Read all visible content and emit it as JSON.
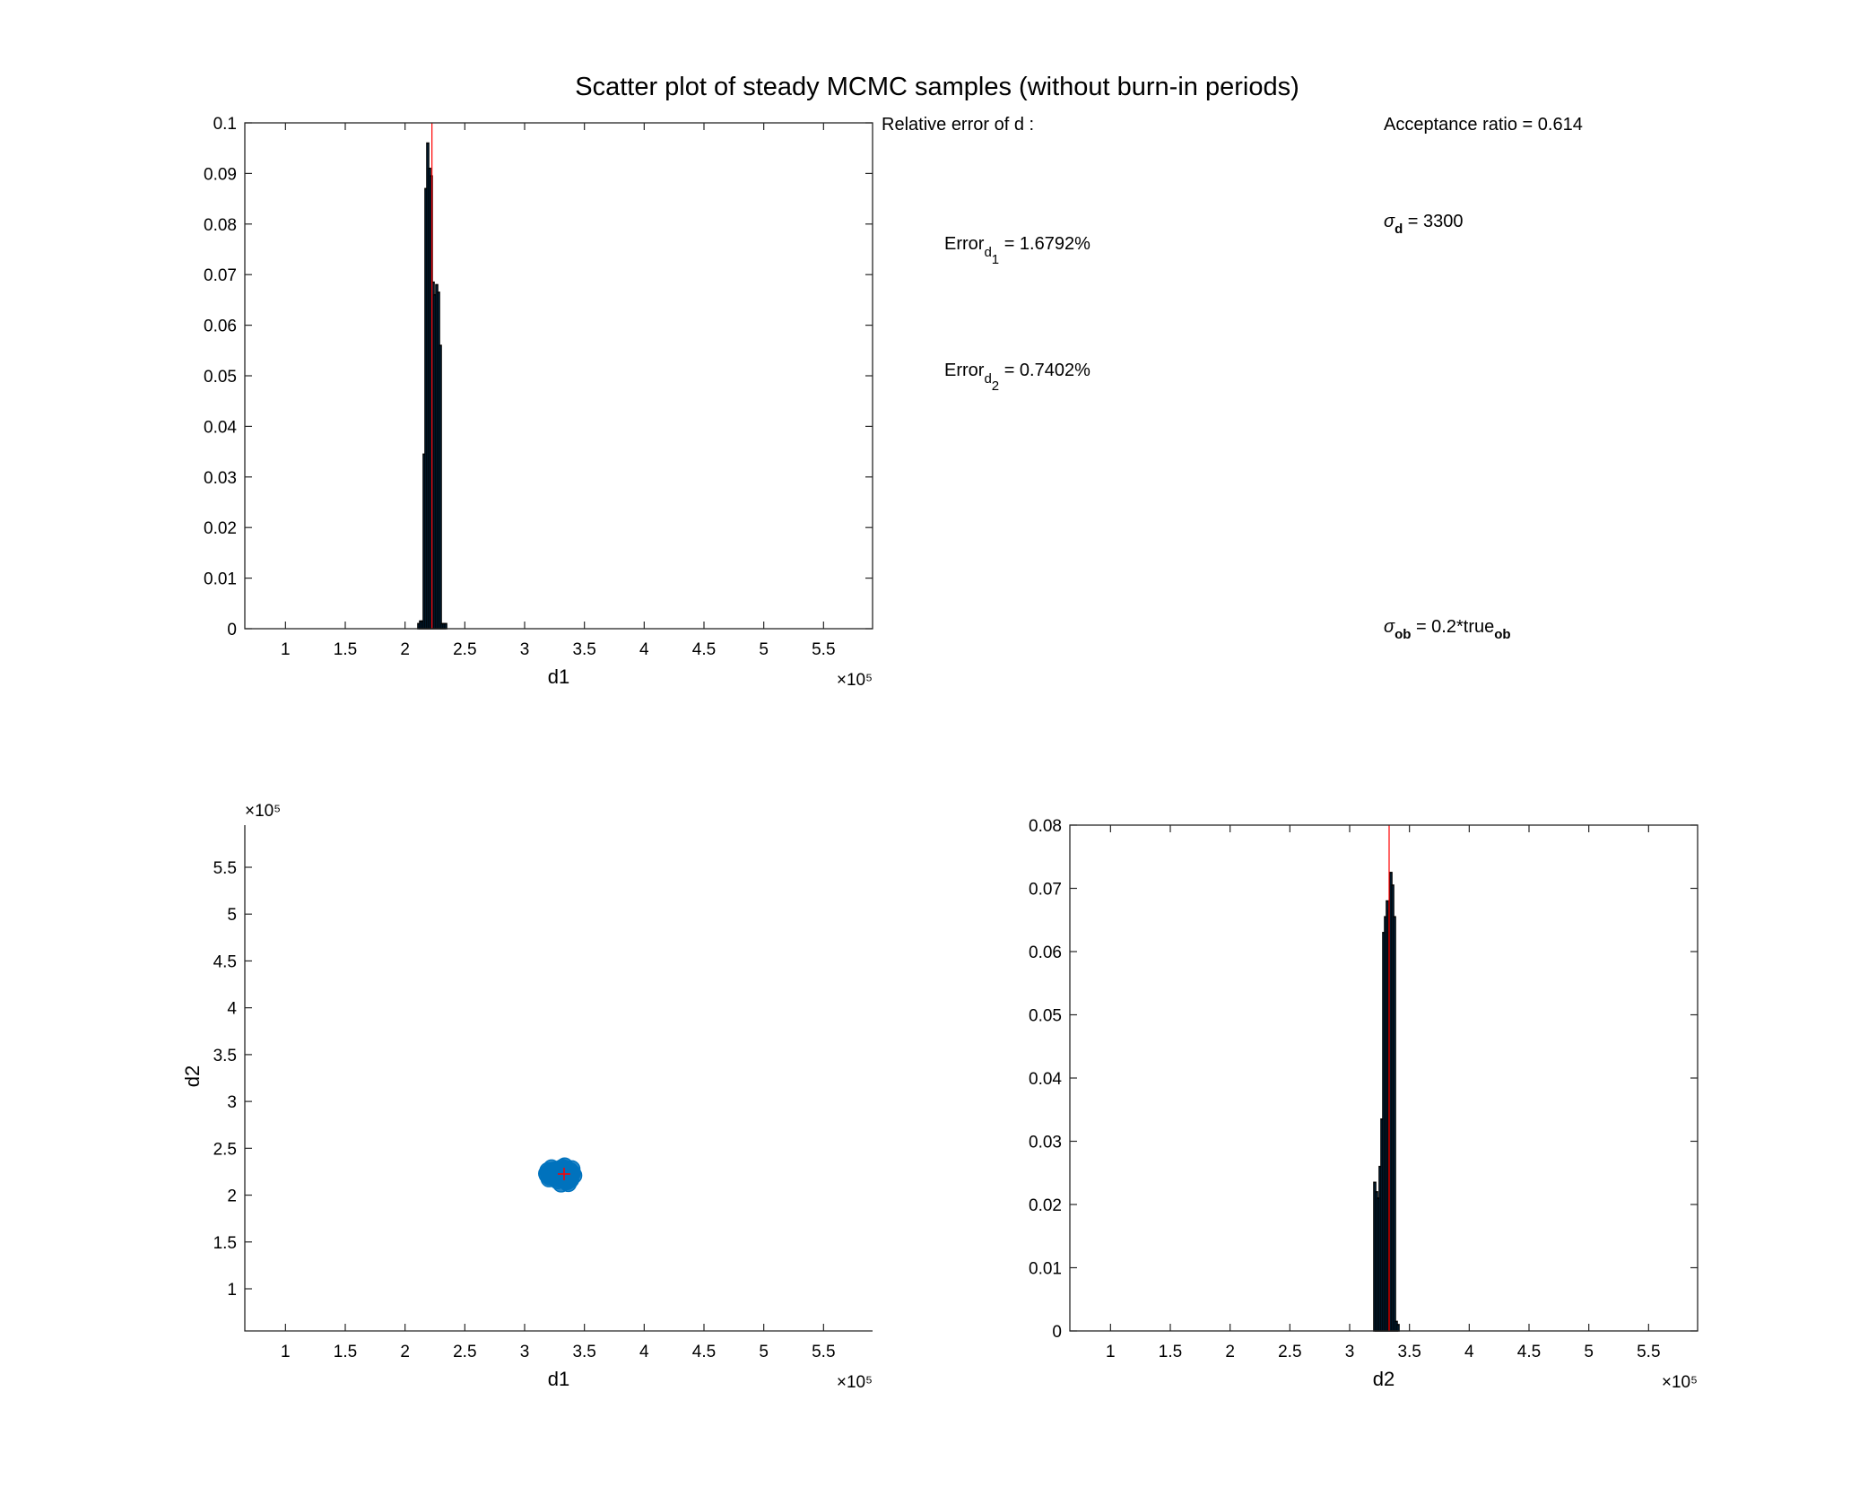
{
  "figure": {
    "title": "Scatter plot of steady MCMC samples (without burn-in periods)"
  },
  "colors": {
    "axis": "#262626",
    "bar_face": "#0072BD",
    "bar_edge": "#000000",
    "scatter": "#0072BD",
    "true_marker": "#FF0000"
  },
  "annotations": {
    "rel_error_heading": "Relative error of d :",
    "error_d1": {
      "base": "Error",
      "sub": "d",
      "subsub": "1",
      "text": " = 1.6792%"
    },
    "error_d2": {
      "base": "Error",
      "sub": "d",
      "subsub": "2",
      "text": " = 0.7402%"
    },
    "acceptance": "Acceptance ratio = 0.614",
    "sigma_d": {
      "base": "σ",
      "sub": "d",
      "text": " = 3300"
    },
    "sigma_ob": {
      "base": "σ",
      "sub": "ob",
      "text": " = 0.2*true",
      "sub2": "ob"
    }
  },
  "chart_data": [
    {
      "id": "hist_d1",
      "type": "bar",
      "xlabel": "d1",
      "ylabel": "",
      "xlim": [
        66000,
        591000
      ],
      "ylim": [
        0,
        0.1
      ],
      "x_exponent": "×10⁵",
      "xticks": [
        100000,
        150000,
        200000,
        250000,
        300000,
        350000,
        400000,
        450000,
        500000,
        550000
      ],
      "xticklabels": [
        "1",
        "1.5",
        "2",
        "2.5",
        "3",
        "3.5",
        "4",
        "4.5",
        "5",
        "5.5"
      ],
      "yticks": [
        0,
        0.01,
        0.02,
        0.03,
        0.04,
        0.05,
        0.06,
        0.07,
        0.08,
        0.09,
        0.1
      ],
      "yticklabels": [
        "0",
        "0.01",
        "0.02",
        "0.03",
        "0.04",
        "0.05",
        "0.06",
        "0.07",
        "0.08",
        "0.09",
        "0.1"
      ],
      "bin_width": 1500,
      "bin_centers": [
        211500,
        213000,
        214500,
        216000,
        217500,
        219000,
        220500,
        222000,
        223500,
        225000,
        226500,
        228000,
        229500,
        231000,
        232500,
        234000
      ],
      "values": [
        0.001,
        0.0015,
        0.0015,
        0.0345,
        0.087,
        0.096,
        0.091,
        0.0895,
        0.0685,
        0.066,
        0.068,
        0.0665,
        0.056,
        0.001,
        0.001,
        0.001
      ],
      "true_value": 222500
    },
    {
      "id": "scatter_d1_d2",
      "type": "scatter",
      "xlabel": "d1",
      "ylabel": "d2",
      "xlim": [
        66000,
        591000
      ],
      "ylim": [
        55000,
        595000
      ],
      "x_exponent": "×10⁵",
      "y_exponent": "×10⁵",
      "xticks": [
        100000,
        150000,
        200000,
        250000,
        300000,
        350000,
        400000,
        450000,
        500000,
        550000
      ],
      "xticklabels": [
        "1",
        "1.5",
        "2",
        "2.5",
        "3",
        "3.5",
        "4",
        "4.5",
        "5",
        "5.5"
      ],
      "yticks": [
        100000,
        150000,
        200000,
        250000,
        300000,
        350000,
        400000,
        450000,
        500000,
        550000
      ],
      "yticklabels": [
        "1",
        "1.5",
        "2",
        "2.5",
        "3",
        "3.5",
        "4",
        "4.5",
        "5",
        "5.5"
      ],
      "points": [
        [
          319000,
          221500
        ],
        [
          320000,
          224000
        ],
        [
          321000,
          219500
        ],
        [
          322000,
          225500
        ],
        [
          323000,
          221000
        ],
        [
          324000,
          226500
        ],
        [
          325000,
          220000
        ],
        [
          326000,
          223500
        ],
        [
          327000,
          218500
        ],
        [
          328000,
          227500
        ],
        [
          329000,
          222500
        ],
        [
          330000,
          217500
        ],
        [
          331000,
          225000
        ],
        [
          332000,
          220500
        ],
        [
          333000,
          223000
        ],
        [
          334000,
          228500
        ],
        [
          335000,
          216000
        ],
        [
          336000,
          224500
        ],
        [
          337000,
          219000
        ],
        [
          338000,
          226000
        ],
        [
          339000,
          221500
        ],
        [
          340000,
          223500
        ],
        [
          322500,
          229000
        ],
        [
          327500,
          215500
        ],
        [
          331500,
          229500
        ],
        [
          335500,
          214500
        ],
        [
          333500,
          231000
        ],
        [
          336500,
          212500
        ],
        [
          330500,
          212000
        ],
        [
          338500,
          216500
        ],
        [
          319500,
          226000
        ],
        [
          320500,
          217500
        ],
        [
          339500,
          228000
        ],
        [
          341000,
          221000
        ],
        [
          318500,
          223000
        ],
        [
          324500,
          222000
        ],
        [
          328500,
          224000
        ],
        [
          332500,
          218000
        ],
        [
          326500,
          227000
        ],
        [
          334500,
          220000
        ]
      ],
      "true_point": [
        333000,
        222500
      ]
    },
    {
      "id": "hist_d2",
      "type": "bar",
      "xlabel": "d2",
      "ylabel": "",
      "xlim": [
        66000,
        591000
      ],
      "ylim": [
        0,
        0.08
      ],
      "x_exponent": "×10⁵",
      "xticks": [
        100000,
        150000,
        200000,
        250000,
        300000,
        350000,
        400000,
        450000,
        500000,
        550000
      ],
      "xticklabels": [
        "1",
        "1.5",
        "2",
        "2.5",
        "3",
        "3.5",
        "4",
        "4.5",
        "5",
        "5.5"
      ],
      "yticks": [
        0,
        0.01,
        0.02,
        0.03,
        0.04,
        0.05,
        0.06,
        0.07,
        0.08
      ],
      "yticklabels": [
        "0",
        "0.01",
        "0.02",
        "0.03",
        "0.04",
        "0.05",
        "0.06",
        "0.07",
        "0.08"
      ],
      "bin_width": 1500,
      "bin_centers": [
        321000,
        322500,
        324000,
        325500,
        327000,
        328500,
        330000,
        331500,
        333000,
        334500,
        336000,
        337500,
        339000,
        340500
      ],
      "values": [
        0.0235,
        0.022,
        0.021,
        0.026,
        0.0335,
        0.063,
        0.0655,
        0.068,
        0.0665,
        0.0725,
        0.0705,
        0.0655,
        0.0015,
        0.001
      ],
      "true_value": 333000
    }
  ]
}
